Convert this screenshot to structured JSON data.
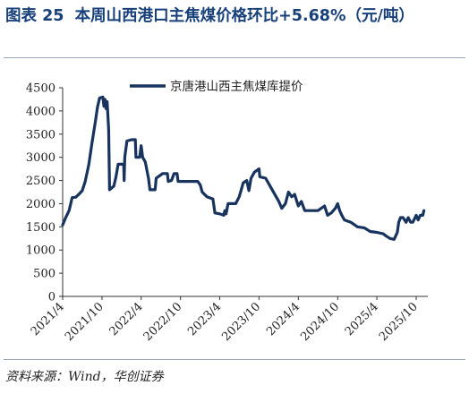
{
  "header": {
    "title": "图表 25  本周山西港口主焦煤价格环比+5.68%（元/吨）"
  },
  "footer": {
    "source": "资料来源：Wind，华创证券"
  },
  "chart_data": {
    "type": "line",
    "title": "",
    "xlabel": "",
    "ylabel": "",
    "ylim": [
      0,
      4500
    ],
    "y_ticks": [
      "0",
      "500",
      "1000",
      "1500",
      "2000",
      "2500",
      "3000",
      "3500",
      "4000",
      "4500"
    ],
    "x_ticks": [
      "2021/4",
      "2021/10",
      "2022/4",
      "2022/10",
      "2023/4",
      "2023/10",
      "2024/4",
      "2024/10",
      "2025/4",
      "2025/10"
    ],
    "legend_position": "top-right",
    "grid": false,
    "color": "#17335e",
    "series": [
      {
        "name": "京唐港山西主焦煤库提价",
        "points": [
          [
            "2021-04-01",
            1540
          ],
          [
            "2021-04-15",
            1700
          ],
          [
            "2021-05-01",
            1850
          ],
          [
            "2021-05-15",
            2130
          ],
          [
            "2021-06-01",
            2140
          ],
          [
            "2021-06-15",
            2200
          ],
          [
            "2021-07-01",
            2280
          ],
          [
            "2021-07-15",
            2480
          ],
          [
            "2021-08-01",
            2850
          ],
          [
            "2021-08-15",
            3300
          ],
          [
            "2021-09-01",
            3800
          ],
          [
            "2021-09-10",
            4080
          ],
          [
            "2021-09-20",
            4280
          ],
          [
            "2021-10-05",
            4300
          ],
          [
            "2021-10-10",
            4100
          ],
          [
            "2021-10-15",
            4250
          ],
          [
            "2021-10-20",
            4050
          ],
          [
            "2021-10-25",
            4200
          ],
          [
            "2021-11-01",
            3600
          ],
          [
            "2021-11-05",
            2300
          ],
          [
            "2021-11-25",
            2380
          ],
          [
            "2021-12-05",
            2580
          ],
          [
            "2021-12-15",
            2850
          ],
          [
            "2022-01-10",
            2850
          ],
          [
            "2022-01-12",
            2500
          ],
          [
            "2022-01-15",
            3000
          ],
          [
            "2022-01-25",
            3350
          ],
          [
            "2022-02-15",
            3380
          ],
          [
            "2022-03-05",
            3380
          ],
          [
            "2022-03-08",
            3000
          ],
          [
            "2022-03-25",
            3000
          ],
          [
            "2022-04-01",
            3250
          ],
          [
            "2022-04-08",
            3000
          ],
          [
            "2022-04-20",
            2900
          ],
          [
            "2022-05-05",
            2550
          ],
          [
            "2022-05-12",
            2300
          ],
          [
            "2022-06-05",
            2300
          ],
          [
            "2022-06-10",
            2550
          ],
          [
            "2022-06-25",
            2600
          ],
          [
            "2022-07-10",
            2650
          ],
          [
            "2022-08-01",
            2650
          ],
          [
            "2022-08-05",
            2480
          ],
          [
            "2022-08-20",
            2500
          ],
          [
            "2022-09-01",
            2650
          ],
          [
            "2022-09-15",
            2650
          ],
          [
            "2022-09-20",
            2480
          ],
          [
            "2022-11-01",
            2480
          ],
          [
            "2022-12-20",
            2480
          ],
          [
            "2023-01-01",
            2400
          ],
          [
            "2023-01-10",
            2250
          ],
          [
            "2023-02-01",
            2150
          ],
          [
            "2023-03-01",
            2100
          ],
          [
            "2023-03-10",
            1800
          ],
          [
            "2023-04-01",
            1780
          ],
          [
            "2023-04-20",
            1750
          ],
          [
            "2023-04-25",
            1850
          ],
          [
            "2023-05-01",
            1780
          ],
          [
            "2023-05-10",
            2000
          ],
          [
            "2023-06-15",
            2000
          ],
          [
            "2023-07-01",
            2150
          ],
          [
            "2023-07-20",
            2450
          ],
          [
            "2023-08-05",
            2500
          ],
          [
            "2023-08-15",
            2280
          ],
          [
            "2023-08-25",
            2550
          ],
          [
            "2023-09-10",
            2680
          ],
          [
            "2023-10-01",
            2750
          ],
          [
            "2023-10-05",
            2580
          ],
          [
            "2023-11-01",
            2550
          ],
          [
            "2023-11-25",
            2350
          ],
          [
            "2024-01-01",
            2050
          ],
          [
            "2024-01-15",
            1900
          ],
          [
            "2024-02-01",
            2000
          ],
          [
            "2024-02-15",
            2250
          ],
          [
            "2024-03-01",
            2150
          ],
          [
            "2024-03-15",
            2200
          ],
          [
            "2024-04-01",
            1950
          ],
          [
            "2024-04-15",
            2050
          ],
          [
            "2024-05-01",
            1850
          ],
          [
            "2024-06-01",
            1850
          ],
          [
            "2024-07-01",
            1850
          ],
          [
            "2024-08-01",
            1950
          ],
          [
            "2024-08-15",
            1750
          ],
          [
            "2024-09-01",
            1800
          ],
          [
            "2024-09-20",
            1900
          ],
          [
            "2024-10-01",
            2000
          ],
          [
            "2024-10-10",
            1850
          ],
          [
            "2024-10-20",
            1750
          ],
          [
            "2024-11-01",
            1650
          ],
          [
            "2024-12-01",
            1600
          ],
          [
            "2025-01-01",
            1500
          ],
          [
            "2025-02-01",
            1480
          ],
          [
            "2025-03-01",
            1400
          ],
          [
            "2025-04-01",
            1380
          ],
          [
            "2025-05-01",
            1350
          ],
          [
            "2025-05-15",
            1300
          ],
          [
            "2025-06-01",
            1250
          ],
          [
            "2025-06-20",
            1230
          ],
          [
            "2025-07-05",
            1380
          ],
          [
            "2025-07-12",
            1600
          ],
          [
            "2025-07-20",
            1700
          ],
          [
            "2025-08-01",
            1700
          ],
          [
            "2025-08-15",
            1600
          ],
          [
            "2025-08-25",
            1700
          ],
          [
            "2025-09-05",
            1600
          ],
          [
            "2025-09-15",
            1600
          ],
          [
            "2025-10-01",
            1750
          ],
          [
            "2025-10-10",
            1650
          ],
          [
            "2025-10-20",
            1750
          ],
          [
            "2025-11-01",
            1750
          ],
          [
            "2025-11-06",
            1850
          ]
        ]
      }
    ]
  }
}
